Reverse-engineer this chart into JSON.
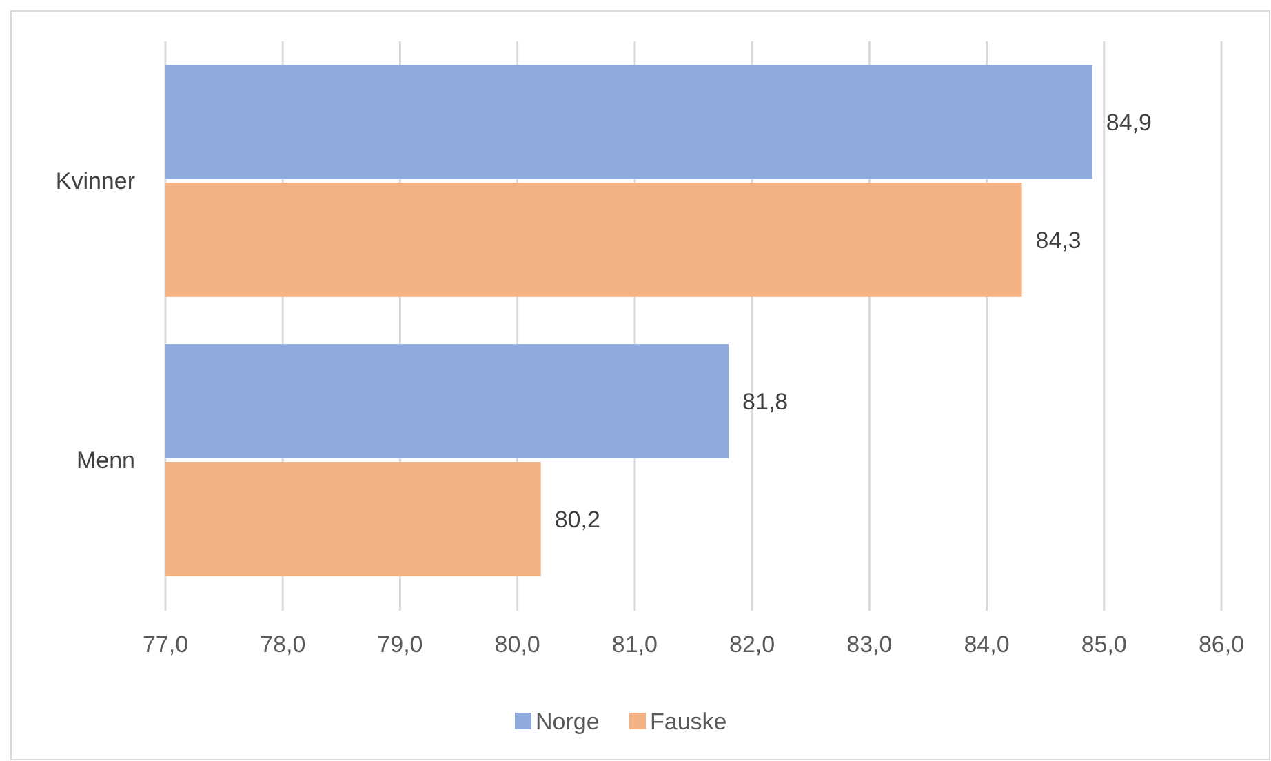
{
  "chart_data": {
    "type": "bar",
    "orientation": "horizontal",
    "categories": [
      "Kvinner",
      "Menn"
    ],
    "series": [
      {
        "name": "Norge",
        "color": "#8faadc",
        "values": [
          84.9,
          81.8
        ],
        "value_labels": [
          "84,9",
          "81,8"
        ]
      },
      {
        "name": "Fauske",
        "color": "#f4b183",
        "values": [
          84.3,
          80.2
        ],
        "value_labels": [
          "84,3",
          "80,2"
        ]
      }
    ],
    "xlim": [
      77,
      86
    ],
    "xticks": [
      {
        "value": 77,
        "label": "77,0"
      },
      {
        "value": 78,
        "label": "78,0"
      },
      {
        "value": 79,
        "label": "79,0"
      },
      {
        "value": 80,
        "label": "80,0"
      },
      {
        "value": 81,
        "label": "81,0"
      },
      {
        "value": 82,
        "label": "82,0"
      },
      {
        "value": 83,
        "label": "83,0"
      },
      {
        "value": 84,
        "label": "84,0"
      },
      {
        "value": 85,
        "label": "85,0"
      },
      {
        "value": 86,
        "label": "86,0"
      }
    ],
    "grid": "x",
    "legend": "bottom"
  }
}
